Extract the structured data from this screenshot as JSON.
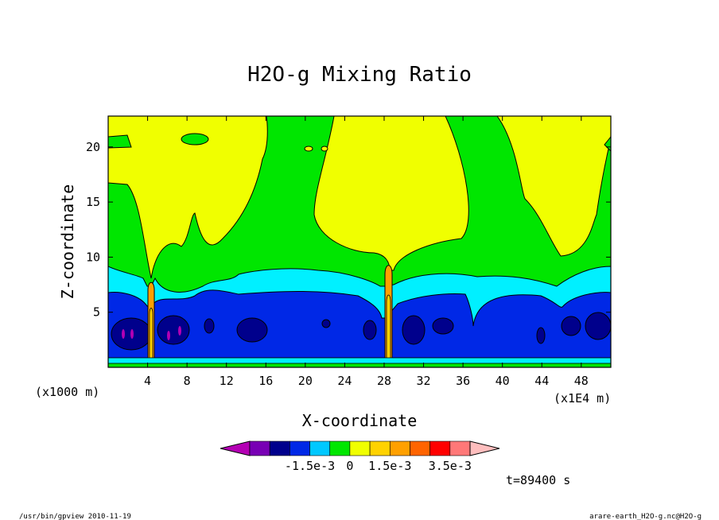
{
  "chart_data": {
    "type": "heatmap",
    "title": "H2O-g Mixing Ratio",
    "xlabel": "X-coordinate",
    "ylabel": "Z-coordinate",
    "x_unit": "(x1E4 m)",
    "y_unit": "(x1000 m)",
    "xlim": [
      0,
      51
    ],
    "ylim": [
      0,
      22.8
    ],
    "x_ticks": [
      {
        "v": 4,
        "label": "4"
      },
      {
        "v": 8,
        "label": "8"
      },
      {
        "v": 12,
        "label": "12"
      },
      {
        "v": 16,
        "label": "16"
      },
      {
        "v": 20,
        "label": "20"
      },
      {
        "v": 24,
        "label": "24"
      },
      {
        "v": 28,
        "label": "28"
      },
      {
        "v": 32,
        "label": "32"
      },
      {
        "v": 36,
        "label": "36"
      },
      {
        "v": 40,
        "label": "40"
      },
      {
        "v": 44,
        "label": "44"
      },
      {
        "v": 48,
        "label": "48"
      }
    ],
    "y_ticks": [
      {
        "v": 5,
        "label": "5"
      },
      {
        "v": 10,
        "label": "10"
      },
      {
        "v": 15,
        "label": "15"
      },
      {
        "v": 20,
        "label": "20"
      }
    ],
    "colorbar": {
      "colors": [
        "#b400b4",
        "#7800b4",
        "#00008c",
        "#0028e6",
        "#00c8ff",
        "#00e600",
        "#f0ff00",
        "#ffd200",
        "#ffa000",
        "#ff6400",
        "#ff0000",
        "#ff7878",
        "#ffbebe"
      ],
      "tick_labels": [
        {
          "after_index": 3,
          "label": "-1.5e-3"
        },
        {
          "after_index": 5,
          "label": "0"
        },
        {
          "after_index": 7,
          "label": "1.5e-3"
        },
        {
          "after_index": 10,
          "label": "3.5e-3"
        }
      ]
    },
    "time_label": "t=89400 s",
    "grid": false
  },
  "footer": {
    "left": "/usr/bin/gpview  2010-11-19",
    "right": "arare-earth_H2O-g.nc@H2O-g"
  },
  "colors": {
    "yellow": "#f0ff00",
    "green": "#00e600",
    "cyan": "#00f0ff",
    "blue": "#0028e6",
    "navy": "#00008c",
    "magenta": "#b400b4",
    "orange": "#ffa000",
    "gold": "#ffd200"
  }
}
